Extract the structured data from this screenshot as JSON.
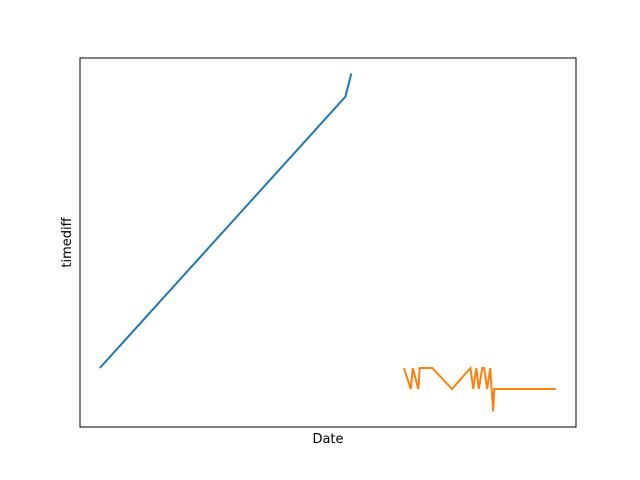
{
  "chart_data": {
    "type": "line",
    "title": "",
    "xlabel": "Date",
    "ylabel": "timediff",
    "xlim": [
      0,
      100
    ],
    "ylim": [
      0,
      100
    ],
    "grid": false,
    "legend": "none",
    "series": [
      {
        "color": "#1f77b4",
        "x": [
          4,
          53.5,
          54.7
        ],
        "y": [
          16,
          89.5,
          95.8
        ]
      },
      {
        "color": "#ff7f0e",
        "x": [
          65.3,
          66.7,
          67.1,
          68.2,
          68.5,
          71.0,
          75.0,
          78.7,
          79.3,
          79.9,
          80.4,
          81.1,
          81.5,
          82.1,
          82.7,
          83.3,
          83.5,
          83.6,
          95.9
        ],
        "y": [
          16,
          10.3,
          16,
          10.3,
          16,
          16,
          10.3,
          16,
          10.3,
          16,
          10.3,
          16,
          16,
          10.3,
          16,
          4.2,
          10.3,
          10.3,
          10.3
        ]
      }
    ]
  }
}
